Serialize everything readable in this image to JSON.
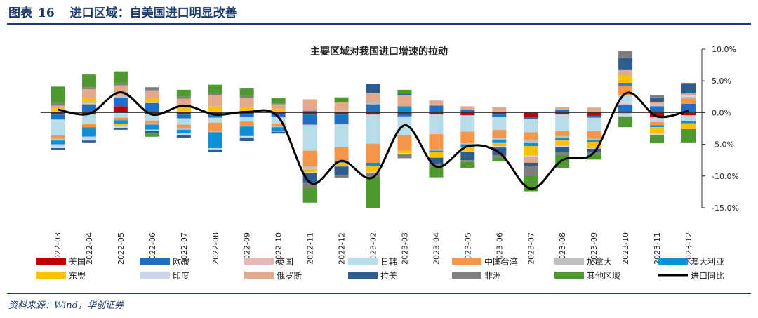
{
  "header": {
    "figure_label": "图表",
    "figure_number": "16",
    "title": "进口区域：自美国进口明显改善"
  },
  "source": "资料来源：Wind，华创证券",
  "chart_data": {
    "type": "bar",
    "subtype": "stacked-bar-with-line",
    "title": "主要区域对我国进口增速的拉动",
    "xlabel": "",
    "ylabel": "",
    "ylim": [
      -15,
      10
    ],
    "yticks": [
      10,
      5,
      0,
      -5,
      -10,
      -15
    ],
    "ytick_labels": [
      "10.0%",
      "5.0%",
      "0.0%",
      "-5.0%",
      "-10.0%",
      "-15.0%"
    ],
    "y_axis_position": "right",
    "grid": false,
    "legend_position": "bottom",
    "categories": [
      "2022-03",
      "2022-04",
      "2022-05",
      "2022-06",
      "2022-07",
      "2022-08",
      "2022-09",
      "2022-10",
      "2022-11",
      "2022-12",
      "2023-02",
      "2023-03",
      "2023-04",
      "2023-05",
      "2023-06",
      "2023-07",
      "2023-08",
      "2023-09",
      "2023-10",
      "2023-11",
      "2023-12"
    ],
    "series": [
      {
        "name": "美国",
        "color": "#c00000",
        "values": [
          -0.3,
          -0.3,
          1.0,
          -0.3,
          -0.3,
          -0.3,
          -0.2,
          -0.2,
          -0.3,
          -0.3,
          -0.3,
          -0.2,
          -0.3,
          -0.4,
          -0.3,
          -0.7,
          -0.3,
          -0.5,
          0.2,
          -0.7,
          -0.4
        ]
      },
      {
        "name": "欧盟",
        "color": "#1f6fc5",
        "values": [
          -0.8,
          1.3,
          1.4,
          1.5,
          -0.6,
          -0.5,
          -0.5,
          -0.5,
          -1.6,
          -1.5,
          1.3,
          -0.4,
          1.1,
          0.4,
          -0.4,
          -0.3,
          0.5,
          -0.3,
          1.0,
          1.0,
          1.4
        ]
      },
      {
        "name": "英国",
        "color": "#e6b8b7",
        "values": [
          0.2,
          0.1,
          0.1,
          0.2,
          0.2,
          0.2,
          0.1,
          0.1,
          -0.1,
          -0.1,
          -0.1,
          -0.1,
          -0.1,
          -0.1,
          0.1,
          -0.1,
          -0.1,
          -0.1,
          0.2,
          -0.2,
          -0.2
        ]
      },
      {
        "name": "日韩",
        "color": "#b7dde8",
        "values": [
          -2.5,
          -1.5,
          -0.8,
          -1.0,
          -1.0,
          -0.8,
          -0.7,
          -1.0,
          -4.0,
          -3.5,
          -4.5,
          -2.8,
          -3.0,
          -2.5,
          -2.0,
          -2.0,
          -2.5,
          -2.0,
          1.3,
          -0.6,
          -0.7
        ]
      },
      {
        "name": "中国台湾",
        "color": "#f79646",
        "values": [
          -0.5,
          -0.5,
          -0.4,
          -0.4,
          -0.5,
          -1.3,
          -0.8,
          -0.4,
          -2.5,
          -2.2,
          -3.0,
          -2.5,
          -2.4,
          -1.8,
          -1.3,
          -1.2,
          -0.8,
          -1.2,
          1.5,
          -0.5,
          0.8
        ]
      },
      {
        "name": "加拿大",
        "color": "#bfbfbf",
        "values": [
          -0.3,
          0.2,
          0.2,
          -0.2,
          -0.3,
          -0.2,
          0.1,
          -0.2,
          -0.4,
          0.3,
          0.4,
          0.1,
          -0.2,
          -0.2,
          -0.3,
          -0.4,
          -0.3,
          -0.2,
          -0.3,
          0.4,
          0.3
        ]
      },
      {
        "name": "澳大利亚",
        "color": "#0f8fd6",
        "values": [
          -0.6,
          -1.5,
          -0.6,
          -0.8,
          -0.6,
          -2.5,
          -1.5,
          -0.6,
          0.3,
          -0.3,
          -0.5,
          0.9,
          -0.2,
          -0.5,
          -0.4,
          -0.6,
          -0.4,
          -0.3,
          0.5,
          -0.3,
          -0.4
        ]
      },
      {
        "name": "东盟",
        "color": "#ffc000",
        "values": [
          0.5,
          0.6,
          -0.3,
          0.5,
          0.5,
          0.8,
          0.7,
          0.5,
          -0.5,
          -0.5,
          -1.0,
          -0.4,
          -0.8,
          -0.6,
          -0.6,
          -1.5,
          -0.8,
          -1.0,
          1.1,
          -1.0,
          -0.9
        ]
      },
      {
        "name": "印度",
        "color": "#ccd5eb",
        "values": [
          -0.6,
          -0.6,
          -0.4,
          -0.2,
          -0.3,
          -0.2,
          -0.3,
          -0.1,
          -0.1,
          -0.1,
          -0.1,
          -0.1,
          -0.1,
          -0.1,
          -0.2,
          -0.2,
          -0.2,
          -0.1,
          -0.3,
          -0.2,
          0.2
        ]
      },
      {
        "name": "俄罗斯",
        "color": "#e2a98a",
        "values": [
          0.4,
          1.5,
          1.6,
          1.3,
          1.5,
          1.8,
          1.4,
          0.7,
          1.8,
          1.3,
          1.4,
          1.7,
          0.8,
          0.6,
          0.8,
          -0.9,
          0.4,
          0.8,
          0.9,
          0.3,
          0.3
        ]
      },
      {
        "name": "拉美",
        "color": "#2e5d8f",
        "values": [
          -0.3,
          -0.3,
          -0.2,
          -0.4,
          -0.4,
          -0.4,
          -0.5,
          -0.3,
          -1.5,
          -1.3,
          1.4,
          0.3,
          -1.0,
          -1.3,
          -1.2,
          -0.5,
          -0.8,
          -0.5,
          1.9,
          0.7,
          1.5
        ]
      },
      {
        "name": "非洲",
        "color": "#7f7f7f",
        "values": [
          0.4,
          0.3,
          0.3,
          0.5,
          0.3,
          0.3,
          0.3,
          0.1,
          -0.8,
          -0.5,
          -0.6,
          -0.7,
          -0.3,
          -0.3,
          -0.4,
          -1.5,
          -0.5,
          -0.4,
          1.1,
          0.3,
          0.2
        ]
      },
      {
        "name": "其他区域",
        "color": "#4e9a2f",
        "values": [
          2.6,
          2.0,
          1.9,
          -0.5,
          1.1,
          1.3,
          1.2,
          0.9,
          -2.4,
          0.8,
          -4.9,
          0.6,
          -1.8,
          -0.9,
          -0.6,
          -2.5,
          -2.0,
          -0.8,
          -1.7,
          -1.3,
          -2.1
        ]
      },
      {
        "name": "进口同比",
        "color": "#000000",
        "kind": "line",
        "values": [
          0.5,
          -0.2,
          3.2,
          -0.3,
          1.1,
          -0.3,
          0.1,
          -0.7,
          -11.0,
          -7.6,
          -10.2,
          -2.0,
          -8.5,
          -5.3,
          -6.3,
          -12.0,
          -7.5,
          -6.3,
          3.0,
          -0.6,
          0.3
        ]
      }
    ]
  }
}
